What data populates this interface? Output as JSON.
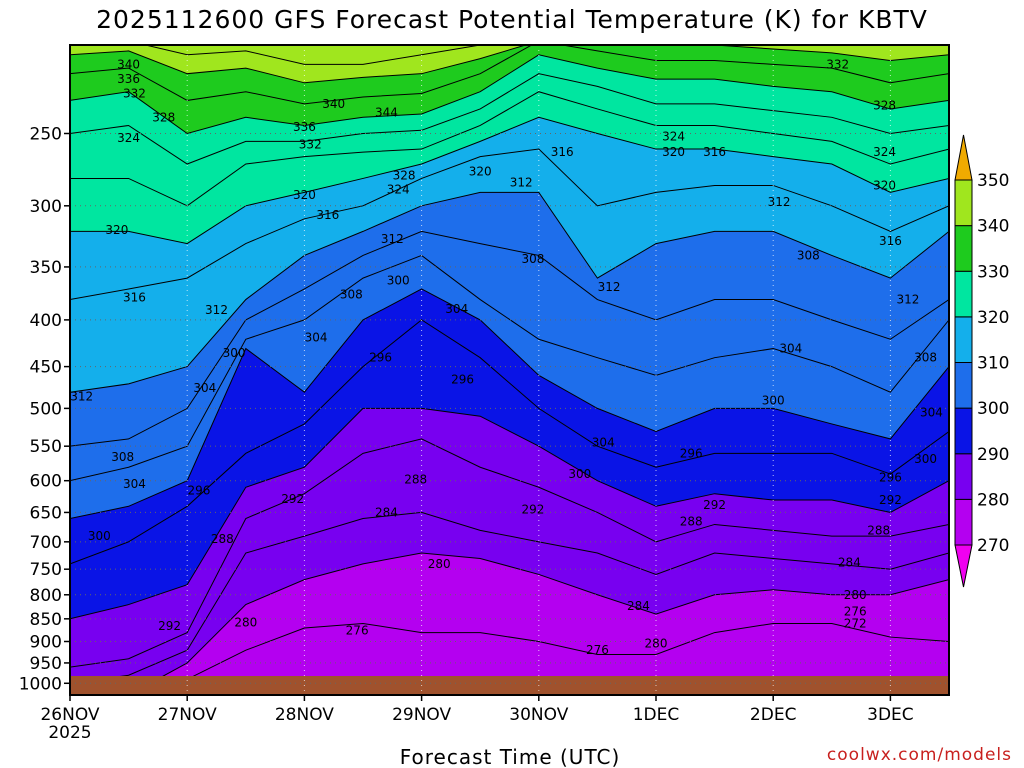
{
  "chart_data": {
    "type": "heatmap",
    "title": "2025112600 GFS Forecast Potential Temperature (K) for KBTV",
    "xlabel": "Forecast Time (UTC)",
    "ylabel": "",
    "credit": "coolwx.com/models",
    "y_scale": "log-pressure (hPa, decreasing upward)",
    "ylim": [
      1030,
      200
    ],
    "y_ticks": [
      250,
      300,
      350,
      400,
      450,
      500,
      550,
      600,
      650,
      700,
      750,
      800,
      850,
      900,
      950,
      1000
    ],
    "x_ticks": [
      "26NOV",
      "27NOV",
      "28NOV",
      "29NOV",
      "30NOV",
      "1DEC",
      "2DEC",
      "3DEC"
    ],
    "x_tick_year": "2025",
    "x_range_days": [
      0,
      7.5
    ],
    "grid": true,
    "colorbar": {
      "levels": [
        270,
        280,
        290,
        300,
        310,
        320,
        330,
        340,
        350
      ],
      "colors": [
        "#f000f0",
        "#b400f0",
        "#7800f0",
        "#0a14e6",
        "#1e6eeb",
        "#14afeb",
        "#00e6a0",
        "#1ecb1e",
        "#a0e61e",
        "#f0f000",
        "#f0aa00"
      ]
    },
    "series": [
      {
        "name": "276",
        "x": [
          0,
          0.5,
          1,
          1.5,
          2,
          2.5,
          3,
          3.5,
          4,
          4.5,
          5,
          5.5,
          6,
          6.5,
          7,
          7.5
        ],
        "values": [
          1030,
          1030,
          990,
          920,
          870,
          860,
          880,
          880,
          900,
          930,
          930,
          880,
          860,
          860,
          890,
          900
        ]
      },
      {
        "name": "280",
        "x": [
          0,
          0.5,
          1,
          1.5,
          2,
          2.5,
          3,
          3.5,
          4,
          4.5,
          5,
          5.5,
          6,
          6.5,
          7,
          7.5
        ],
        "values": [
          1030,
          1030,
          950,
          820,
          770,
          740,
          720,
          730,
          760,
          800,
          840,
          800,
          790,
          800,
          800,
          770
        ]
      },
      {
        "name": "284",
        "x": [
          0,
          0.5,
          1,
          1.5,
          2,
          2.5,
          3,
          3.5,
          4,
          4.5,
          5,
          5.5,
          6,
          6.5,
          7,
          7.5
        ],
        "values": [
          1000,
          980,
          920,
          720,
          690,
          660,
          650,
          680,
          700,
          720,
          760,
          720,
          730,
          740,
          750,
          720
        ]
      },
      {
        "name": "288",
        "x": [
          0,
          0.5,
          1,
          1.5,
          2,
          2.5,
          3,
          3.5,
          4,
          4.5,
          5,
          5.5,
          6,
          6.5,
          7,
          7.5
        ],
        "values": [
          960,
          940,
          880,
          660,
          620,
          560,
          540,
          580,
          610,
          650,
          700,
          670,
          680,
          690,
          690,
          670
        ]
      },
      {
        "name": "292",
        "x": [
          0,
          0.5,
          1,
          1.5,
          2,
          2.5,
          3,
          3.5,
          4,
          4.5,
          5,
          5.5,
          6,
          6.5,
          7,
          7.5
        ],
        "values": [
          850,
          820,
          780,
          610,
          580,
          500,
          500,
          510,
          550,
          600,
          640,
          620,
          630,
          630,
          650,
          600
        ]
      },
      {
        "name": "296",
        "x": [
          0,
          0.5,
          1,
          1.5,
          2,
          2.5,
          3,
          3.5,
          4,
          4.5,
          5,
          5.5,
          6,
          6.5,
          7,
          7.5
        ],
        "values": [
          740,
          700,
          640,
          560,
          520,
          450,
          400,
          440,
          500,
          550,
          580,
          560,
          560,
          560,
          590,
          530
        ]
      },
      {
        "name": "300",
        "x": [
          0,
          0.5,
          1,
          1.5,
          2,
          2.5,
          3,
          3.5,
          4,
          4.5,
          5,
          5.5,
          6,
          6.5,
          7,
          7.5
        ],
        "values": [
          660,
          640,
          600,
          430,
          480,
          400,
          370,
          400,
          460,
          500,
          530,
          500,
          500,
          520,
          540,
          450
        ]
      },
      {
        "name": "304",
        "x": [
          0,
          0.5,
          1,
          1.5,
          2,
          2.5,
          3,
          3.5,
          4,
          4.5,
          5,
          5.5,
          6,
          6.5,
          7,
          7.5
        ],
        "values": [
          600,
          580,
          550,
          420,
          400,
          360,
          340,
          380,
          420,
          440,
          460,
          440,
          430,
          450,
          480,
          400
        ]
      },
      {
        "name": "308",
        "x": [
          0,
          0.5,
          1,
          1.5,
          2,
          2.5,
          3,
          3.5,
          4,
          4.5,
          5,
          5.5,
          6,
          6.5,
          7,
          7.5
        ],
        "values": [
          550,
          540,
          500,
          400,
          370,
          340,
          320,
          330,
          340,
          380,
          400,
          380,
          380,
          400,
          420,
          380
        ]
      },
      {
        "name": "312",
        "x": [
          0,
          0.5,
          1,
          1.5,
          2,
          2.5,
          3,
          3.5,
          4,
          4.5,
          5,
          5.5,
          6,
          6.5,
          7,
          7.5
        ],
        "values": [
          480,
          470,
          450,
          380,
          340,
          320,
          300,
          290,
          290,
          360,
          330,
          320,
          320,
          340,
          360,
          320
        ]
      },
      {
        "name": "316",
        "x": [
          0,
          0.5,
          1,
          1.5,
          2,
          2.5,
          3,
          3.5,
          4,
          4.5,
          5,
          5.5,
          6,
          6.5,
          7,
          7.5
        ],
        "values": [
          380,
          370,
          360,
          330,
          310,
          300,
          280,
          265,
          260,
          300,
          290,
          285,
          285,
          300,
          320,
          300
        ]
      },
      {
        "name": "320",
        "x": [
          0,
          0.5,
          1,
          1.5,
          2,
          2.5,
          3,
          3.5,
          4,
          4.5,
          5,
          5.5,
          6,
          6.5,
          7,
          7.5
        ],
        "values": [
          320,
          320,
          330,
          300,
          290,
          280,
          270,
          255,
          240,
          250,
          260,
          260,
          265,
          270,
          290,
          280
        ]
      },
      {
        "name": "324",
        "x": [
          0,
          0.5,
          1,
          1.5,
          2,
          2.5,
          3,
          3.5,
          4,
          4.5,
          5,
          5.5,
          6,
          6.5,
          7,
          7.5
        ],
        "values": [
          280,
          280,
          300,
          270,
          265,
          262,
          260,
          245,
          225,
          235,
          245,
          245,
          250,
          255,
          270,
          260
        ]
      },
      {
        "name": "328",
        "x": [
          0,
          0.5,
          1,
          1.5,
          2,
          2.5,
          3,
          3.5,
          4,
          4.5,
          5,
          5.5,
          6,
          6.5,
          7,
          7.5
        ],
        "values": [
          250,
          245,
          270,
          255,
          255,
          250,
          248,
          235,
          215,
          222,
          232,
          232,
          236,
          240,
          250,
          245
        ]
      },
      {
        "name": "332",
        "x": [
          0,
          0.5,
          1,
          1.5,
          2,
          2.5,
          3,
          3.5,
          4,
          4.5,
          5,
          5.5,
          6,
          6.5,
          7,
          7.5
        ],
        "values": [
          230,
          225,
          250,
          240,
          245,
          240,
          238,
          225,
          205,
          212,
          218,
          218,
          222,
          225,
          235,
          230
        ]
      },
      {
        "name": "336",
        "x": [
          0,
          0.5,
          1,
          1.5,
          2,
          2.5,
          3,
          3.5,
          4,
          4.5,
          5,
          5.5,
          6,
          6.5,
          7,
          7.5
        ],
        "values": [
          215,
          212,
          230,
          225,
          232,
          228,
          226,
          215,
          198,
          203,
          208,
          208,
          210,
          212,
          220,
          215
        ]
      },
      {
        "name": "340",
        "x": [
          0,
          0.5,
          1,
          1.5,
          2,
          2.5,
          3,
          3.5,
          4,
          4.5,
          5,
          5.5,
          6,
          6.5,
          7,
          7.5
        ],
        "values": [
          205,
          203,
          215,
          212,
          220,
          217,
          215,
          207,
          198,
          198,
          200,
          200,
          202,
          204,
          208,
          205
        ]
      },
      {
        "name": "344",
        "x": [
          0,
          0.5,
          1,
          1.5,
          2,
          2.5,
          3,
          3.5,
          4,
          4.5,
          5,
          5.5,
          6,
          6.5,
          7,
          7.5
        ],
        "values": [
          198,
          198,
          205,
          203,
          210,
          210,
          205,
          200,
          198,
          198,
          198,
          198,
          198,
          198,
          200,
          198
        ]
      }
    ],
    "annotations": [
      {
        "text": "340",
        "x": 0.5,
        "y": 210
      },
      {
        "text": "336",
        "x": 0.5,
        "y": 218
      },
      {
        "text": "332",
        "x": 0.55,
        "y": 226
      },
      {
        "text": "328",
        "x": 0.8,
        "y": 240
      },
      {
        "text": "324",
        "x": 0.5,
        "y": 253
      },
      {
        "text": "320",
        "x": 0.4,
        "y": 319
      },
      {
        "text": "316",
        "x": 0.55,
        "y": 378
      },
      {
        "text": "312",
        "x": 0.1,
        "y": 485
      },
      {
        "text": "308",
        "x": 0.45,
        "y": 565
      },
      {
        "text": "304",
        "x": 0.55,
        "y": 605
      },
      {
        "text": "300",
        "x": 0.25,
        "y": 690
      },
      {
        "text": "292",
        "x": 0.85,
        "y": 865
      },
      {
        "text": "296",
        "x": 1.1,
        "y": 615
      },
      {
        "text": "288",
        "x": 1.3,
        "y": 695
      },
      {
        "text": "280",
        "x": 1.5,
        "y": 858
      },
      {
        "text": "312",
        "x": 1.25,
        "y": 390
      },
      {
        "text": "300",
        "x": 1.4,
        "y": 435
      },
      {
        "text": "304",
        "x": 1.15,
        "y": 475
      },
      {
        "text": "320",
        "x": 2.0,
        "y": 292
      },
      {
        "text": "316",
        "x": 2.2,
        "y": 307
      },
      {
        "text": "336",
        "x": 2.0,
        "y": 246
      },
      {
        "text": "332",
        "x": 2.05,
        "y": 257
      },
      {
        "text": "340",
        "x": 2.25,
        "y": 232
      },
      {
        "text": "304",
        "x": 2.1,
        "y": 418
      },
      {
        "text": "308",
        "x": 2.4,
        "y": 375
      },
      {
        "text": "292",
        "x": 1.9,
        "y": 628
      },
      {
        "text": "276",
        "x": 2.45,
        "y": 875
      },
      {
        "text": "344",
        "x": 2.7,
        "y": 237
      },
      {
        "text": "328",
        "x": 2.85,
        "y": 278
      },
      {
        "text": "324",
        "x": 2.8,
        "y": 288
      },
      {
        "text": "312",
        "x": 2.75,
        "y": 326
      },
      {
        "text": "300",
        "x": 2.8,
        "y": 362
      },
      {
        "text": "296",
        "x": 2.65,
        "y": 440
      },
      {
        "text": "288",
        "x": 2.95,
        "y": 598
      },
      {
        "text": "284",
        "x": 2.7,
        "y": 650
      },
      {
        "text": "280",
        "x": 3.15,
        "y": 740
      },
      {
        "text": "320",
        "x": 3.5,
        "y": 275
      },
      {
        "text": "312",
        "x": 3.85,
        "y": 283
      },
      {
        "text": "308",
        "x": 3.95,
        "y": 343
      },
      {
        "text": "304",
        "x": 3.3,
        "y": 389
      },
      {
        "text": "296",
        "x": 3.35,
        "y": 465
      },
      {
        "text": "292",
        "x": 3.95,
        "y": 645
      },
      {
        "text": "316",
        "x": 4.2,
        "y": 262
      },
      {
        "text": "312",
        "x": 4.6,
        "y": 368
      },
      {
        "text": "304",
        "x": 4.55,
        "y": 545
      },
      {
        "text": "300",
        "x": 4.35,
        "y": 590
      },
      {
        "text": "276",
        "x": 4.5,
        "y": 920
      },
      {
        "text": "284",
        "x": 4.85,
        "y": 823
      },
      {
        "text": "280",
        "x": 5.0,
        "y": 905
      },
      {
        "text": "296",
        "x": 5.3,
        "y": 560
      },
      {
        "text": "292",
        "x": 5.5,
        "y": 638
      },
      {
        "text": "288",
        "x": 5.3,
        "y": 665
      },
      {
        "text": "324",
        "x": 5.15,
        "y": 252
      },
      {
        "text": "320",
        "x": 5.15,
        "y": 262
      },
      {
        "text": "316",
        "x": 5.5,
        "y": 262
      },
      {
        "text": "300",
        "x": 6.0,
        "y": 490
      },
      {
        "text": "304",
        "x": 6.15,
        "y": 430
      },
      {
        "text": "308",
        "x": 6.3,
        "y": 340
      },
      {
        "text": "312",
        "x": 6.05,
        "y": 297
      },
      {
        "text": "332",
        "x": 6.55,
        "y": 210
      },
      {
        "text": "284",
        "x": 6.65,
        "y": 737
      },
      {
        "text": "280",
        "x": 6.7,
        "y": 800
      },
      {
        "text": "276",
        "x": 6.7,
        "y": 834
      },
      {
        "text": "272",
        "x": 6.7,
        "y": 860
      },
      {
        "text": "288",
        "x": 6.9,
        "y": 680
      },
      {
        "text": "296",
        "x": 7.0,
        "y": 595
      },
      {
        "text": "292",
        "x": 7.0,
        "y": 630
      },
      {
        "text": "328",
        "x": 6.95,
        "y": 233
      },
      {
        "text": "324",
        "x": 6.95,
        "y": 262
      },
      {
        "text": "320",
        "x": 6.95,
        "y": 285
      },
      {
        "text": "316",
        "x": 7.0,
        "y": 328
      },
      {
        "text": "312",
        "x": 7.15,
        "y": 380
      },
      {
        "text": "308",
        "x": 7.3,
        "y": 440
      },
      {
        "text": "304",
        "x": 7.35,
        "y": 505
      },
      {
        "text": "300",
        "x": 7.3,
        "y": 568
      }
    ]
  }
}
